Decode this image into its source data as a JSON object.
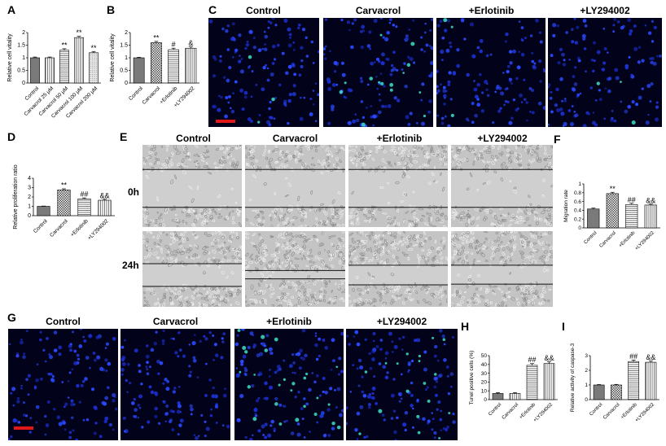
{
  "panels": {
    "A": "A",
    "B": "B",
    "C": "C",
    "D": "D",
    "E": "E",
    "F": "F",
    "G": "G",
    "H": "H",
    "I": "I"
  },
  "panel_C": {
    "titles": [
      "Control",
      "Carvacrol",
      "+Erlotinib",
      "+LY294002"
    ]
  },
  "panel_E": {
    "titles": [
      "Control",
      "Carvacrol",
      "+Erlotinib",
      "+LY294002"
    ],
    "rows": [
      "0h",
      "24h"
    ]
  },
  "panel_G": {
    "titles": [
      "Control",
      "Carvacrol",
      "+Erlotinib",
      "+LY294002"
    ]
  },
  "colors": {
    "solid_bar": "#7a7a7a",
    "scale_bar": "#e01818",
    "nuclei": "#1b2fd0",
    "positive_cells": "#3de0c8"
  },
  "chart_data": [
    {
      "id": "A",
      "type": "bar",
      "categories": [
        "Control",
        "Carvacrol 25 μM",
        "Carvacrol 50 μM",
        "Carvacrol 100 μM",
        "Carvacrol 200 μM"
      ],
      "values": [
        1.0,
        1.0,
        1.3,
        1.8,
        1.2
      ],
      "errors": [
        0.03,
        0.03,
        0.06,
        0.05,
        0.05
      ],
      "significance": [
        "",
        "",
        "**",
        "**",
        "**"
      ],
      "patterns": [
        "solid",
        "vlines",
        "hlines",
        "vlines",
        "dots"
      ],
      "ylabel": "Relative cell vitality",
      "ylim": [
        0,
        2
      ],
      "yticks": [
        0.0,
        0.5,
        1.0,
        1.5,
        2.0
      ]
    },
    {
      "id": "B",
      "type": "bar",
      "categories": [
        "Control",
        "Carvacrol",
        "+Erlotinib",
        "+LY294002"
      ],
      "values": [
        1.0,
        1.6,
        1.32,
        1.38
      ],
      "errors": [
        0.02,
        0.05,
        0.06,
        0.05
      ],
      "significance": [
        "",
        "**",
        "#",
        "&"
      ],
      "patterns": [
        "solid",
        "checker",
        "hlines",
        "vlines"
      ],
      "ylabel": "Relative cell vitality",
      "ylim": [
        0,
        2
      ],
      "yticks": [
        0.0,
        0.5,
        1.0,
        1.5,
        2.0
      ]
    },
    {
      "id": "D",
      "type": "bar",
      "categories": [
        "Control",
        "Carvacrol",
        "+Erlotinib",
        "+LY294002"
      ],
      "values": [
        1.0,
        2.75,
        1.8,
        1.65
      ],
      "errors": [
        0.03,
        0.12,
        0.1,
        0.1
      ],
      "significance": [
        "",
        "**",
        "##",
        "&&"
      ],
      "patterns": [
        "solid",
        "checker",
        "hlines",
        "vlines"
      ],
      "ylabel": "Relative proliferation ratio",
      "ylim": [
        0,
        4
      ],
      "yticks": [
        0,
        1,
        2,
        3,
        4
      ]
    },
    {
      "id": "F",
      "type": "bar",
      "categories": [
        "Control",
        "Carvacrol",
        "+Erlotinib",
        "+LY294002"
      ],
      "values": [
        0.43,
        0.78,
        0.53,
        0.52
      ],
      "errors": [
        0.02,
        0.03,
        0.03,
        0.02
      ],
      "significance": [
        "",
        "**",
        "##",
        "&&"
      ],
      "patterns": [
        "solid",
        "checker",
        "hlines",
        "vlines"
      ],
      "ylabel": "Migration rate",
      "ylim": [
        0,
        1
      ],
      "yticks": [
        0.0,
        0.2,
        0.4,
        0.6,
        0.8,
        1.0
      ]
    },
    {
      "id": "H",
      "type": "bar",
      "categories": [
        "Control",
        "Carvacrol",
        "+Erlotinib",
        "+LY294002"
      ],
      "values": [
        7,
        7,
        39,
        41
      ],
      "errors": [
        1,
        1,
        2,
        2
      ],
      "significance": [
        "",
        "",
        "##",
        "&&"
      ],
      "patterns": [
        "solid",
        "vlines",
        "hlines",
        "vlines"
      ],
      "ylabel": "Tunel positive cells (%)",
      "ylim": [
        0,
        50
      ],
      "yticks": [
        0,
        10,
        20,
        30,
        40,
        50
      ]
    },
    {
      "id": "I",
      "type": "bar",
      "categories": [
        "Control",
        "Carvacrol",
        "+Erlotinib",
        "+LY294002"
      ],
      "values": [
        1.0,
        1.0,
        2.6,
        2.55
      ],
      "errors": [
        0.03,
        0.04,
        0.1,
        0.08
      ],
      "significance": [
        "",
        "",
        "##",
        "&&"
      ],
      "patterns": [
        "solid",
        "checker",
        "hlines",
        "vlines"
      ],
      "ylabel": "Relative activity of caspase-3",
      "ylim": [
        0,
        3
      ],
      "yticks": [
        0,
        1,
        2,
        3
      ]
    }
  ]
}
